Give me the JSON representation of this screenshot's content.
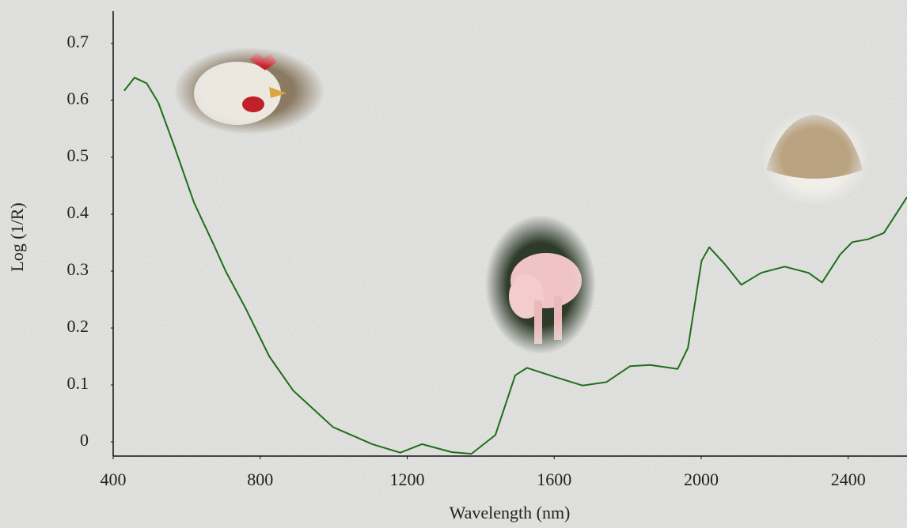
{
  "chart_data": {
    "type": "line",
    "x_label": "Wavelength (nm)",
    "y_label": "Log (1/R)",
    "xlim": [
      400,
      2560
    ],
    "ylim": [
      -0.025,
      0.757
    ],
    "xticks": [
      400,
      800,
      1200,
      1600,
      2000,
      2400
    ],
    "yticks": [
      0,
      0.1,
      0.2,
      0.3,
      0.4,
      0.5,
      0.6,
      0.7
    ],
    "series": [
      {
        "color": "#1f6e1a",
        "x": [
          430,
          458,
          491,
          523,
          566,
          620,
          674,
          706,
          760,
          825,
          890,
          998,
          1105,
          1181,
          1240,
          1321,
          1375,
          1440,
          1494,
          1526,
          1602,
          1677,
          1742,
          1807,
          1861,
          1936,
          1964,
          2001,
          2022,
          2066,
          2109,
          2163,
          2227,
          2292,
          2329,
          2378,
          2411,
          2454,
          2497,
          2560
        ],
        "values": [
          0.617,
          0.64,
          0.63,
          0.596,
          0.52,
          0.42,
          0.346,
          0.3,
          0.235,
          0.15,
          0.09,
          0.026,
          -0.004,
          -0.019,
          -0.004,
          -0.018,
          -0.021,
          0.012,
          0.117,
          0.13,
          0.114,
          0.099,
          0.105,
          0.133,
          0.135,
          0.128,
          0.165,
          0.318,
          0.342,
          0.311,
          0.276,
          0.297,
          0.308,
          0.297,
          0.28,
          0.329,
          0.351,
          0.356,
          0.367,
          0.43
        ]
      }
    ]
  }
}
